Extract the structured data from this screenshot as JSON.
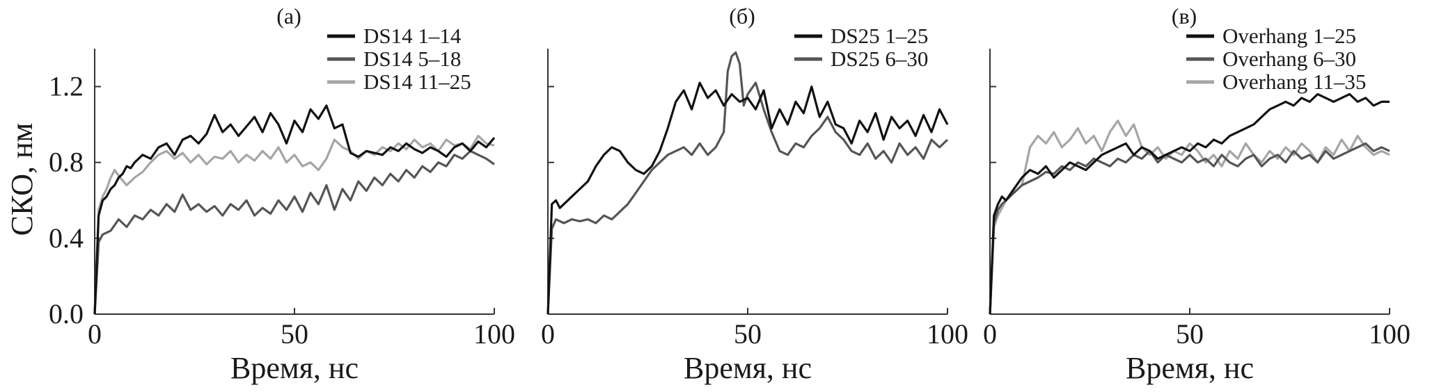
{
  "figure": {
    "ylabel": "СКО, нм",
    "xlabel": "Время, нс"
  },
  "chart_data": [
    {
      "type": "line",
      "panel_label": "(а)",
      "xlabel": "Время, нс",
      "ylabel": "СКО, нм",
      "xlim": [
        0,
        100
      ],
      "ylim": [
        0,
        1.4
      ],
      "xticks": [
        0,
        50,
        100
      ],
      "yticks": [
        0.0,
        0.4,
        0.8,
        1.2
      ],
      "xtick_labels": [
        "0",
        "50",
        "100"
      ],
      "ytick_labels": [
        "0.0",
        "0.4",
        "0.8",
        "1.2"
      ],
      "grid": false,
      "legend_position": "top-right",
      "series": [
        {
          "name": "DS14 1–14",
          "color": "#111111",
          "x": [
            0,
            1,
            2,
            3,
            4,
            5,
            6,
            7,
            8,
            9,
            10,
            12,
            14,
            16,
            18,
            20,
            22,
            24,
            26,
            28,
            30,
            32,
            34,
            36,
            38,
            40,
            42,
            44,
            46,
            48,
            50,
            52,
            54,
            56,
            58,
            60,
            62,
            64,
            66,
            68,
            70,
            72,
            74,
            76,
            78,
            80,
            82,
            84,
            86,
            88,
            90,
            92,
            94,
            96,
            98,
            100
          ],
          "y": [
            0.0,
            0.52,
            0.6,
            0.62,
            0.66,
            0.68,
            0.72,
            0.74,
            0.78,
            0.77,
            0.8,
            0.84,
            0.82,
            0.88,
            0.9,
            0.84,
            0.92,
            0.94,
            0.9,
            0.95,
            1.05,
            0.96,
            1.0,
            0.94,
            0.99,
            1.04,
            0.96,
            1.06,
            1.0,
            0.9,
            1.02,
            0.96,
            1.08,
            1.03,
            1.1,
            0.98,
            1.0,
            0.85,
            0.83,
            0.86,
            0.85,
            0.84,
            0.88,
            0.86,
            0.9,
            0.87,
            0.85,
            0.88,
            0.86,
            0.83,
            0.88,
            0.9,
            0.86,
            0.91,
            0.88,
            0.93
          ]
        },
        {
          "name": "DS14 5–18",
          "color": "#555555",
          "x": [
            0,
            1,
            2,
            4,
            6,
            8,
            10,
            12,
            14,
            16,
            18,
            20,
            22,
            24,
            26,
            28,
            30,
            32,
            34,
            36,
            38,
            40,
            42,
            44,
            46,
            48,
            50,
            52,
            54,
            56,
            58,
            60,
            62,
            64,
            66,
            68,
            70,
            72,
            74,
            76,
            78,
            80,
            82,
            84,
            86,
            88,
            90,
            92,
            94,
            96,
            98,
            100
          ],
          "y": [
            0.0,
            0.38,
            0.42,
            0.44,
            0.5,
            0.46,
            0.52,
            0.5,
            0.55,
            0.52,
            0.58,
            0.54,
            0.63,
            0.55,
            0.58,
            0.54,
            0.57,
            0.52,
            0.58,
            0.55,
            0.6,
            0.52,
            0.56,
            0.53,
            0.6,
            0.55,
            0.62,
            0.54,
            0.64,
            0.58,
            0.68,
            0.55,
            0.66,
            0.6,
            0.7,
            0.65,
            0.72,
            0.68,
            0.74,
            0.7,
            0.76,
            0.72,
            0.78,
            0.75,
            0.8,
            0.78,
            0.84,
            0.82,
            0.86,
            0.84,
            0.82,
            0.79
          ]
        },
        {
          "name": "DS14 11–25",
          "color": "#a5a5a5",
          "x": [
            0,
            1,
            2,
            3,
            4,
            5,
            6,
            8,
            10,
            12,
            14,
            16,
            18,
            20,
            22,
            24,
            26,
            28,
            30,
            32,
            34,
            36,
            38,
            40,
            42,
            44,
            46,
            48,
            50,
            52,
            54,
            56,
            58,
            60,
            62,
            64,
            66,
            68,
            70,
            72,
            74,
            76,
            78,
            80,
            82,
            84,
            86,
            88,
            90,
            92,
            94,
            96,
            98,
            100
          ],
          "y": [
            0.0,
            0.55,
            0.62,
            0.66,
            0.72,
            0.76,
            0.73,
            0.68,
            0.72,
            0.75,
            0.8,
            0.84,
            0.86,
            0.82,
            0.85,
            0.8,
            0.84,
            0.79,
            0.83,
            0.82,
            0.86,
            0.8,
            0.84,
            0.81,
            0.86,
            0.82,
            0.88,
            0.8,
            0.84,
            0.78,
            0.8,
            0.76,
            0.82,
            0.92,
            0.88,
            0.86,
            0.82,
            0.86,
            0.84,
            0.88,
            0.86,
            0.9,
            0.87,
            0.92,
            0.88,
            0.9,
            0.86,
            0.92,
            0.89,
            0.9,
            0.87,
            0.94,
            0.9,
            0.89
          ]
        }
      ]
    },
    {
      "type": "line",
      "panel_label": "(б)",
      "xlabel": "Время, нс",
      "ylabel": "",
      "xlim": [
        0,
        100
      ],
      "ylim": [
        0,
        1.4
      ],
      "xticks": [
        0,
        50,
        100
      ],
      "yticks": [
        0.0,
        0.4,
        0.8,
        1.2
      ],
      "xtick_labels": [
        "0",
        "50",
        "100"
      ],
      "ytick_labels": [],
      "grid": false,
      "legend_position": "top-right",
      "series": [
        {
          "name": "DS25 1–25",
          "color": "#111111",
          "x": [
            0,
            1,
            2,
            3,
            4,
            6,
            8,
            10,
            12,
            14,
            16,
            18,
            20,
            22,
            24,
            26,
            28,
            30,
            32,
            34,
            36,
            38,
            40,
            42,
            44,
            46,
            48,
            50,
            52,
            54,
            56,
            58,
            60,
            62,
            64,
            66,
            68,
            70,
            72,
            74,
            76,
            78,
            80,
            82,
            84,
            86,
            88,
            90,
            92,
            94,
            96,
            98,
            100
          ],
          "y": [
            0.0,
            0.58,
            0.6,
            0.56,
            0.58,
            0.62,
            0.66,
            0.7,
            0.78,
            0.84,
            0.88,
            0.86,
            0.8,
            0.76,
            0.74,
            0.78,
            0.86,
            0.98,
            1.12,
            1.18,
            1.08,
            1.22,
            1.14,
            1.18,
            1.1,
            1.16,
            1.12,
            1.14,
            1.08,
            1.18,
            0.98,
            1.08,
            1.0,
            1.12,
            1.06,
            1.2,
            1.04,
            1.12,
            1.0,
            0.98,
            0.9,
            1.02,
            0.96,
            1.06,
            0.92,
            1.04,
            0.98,
            1.02,
            0.94,
            1.05,
            0.96,
            1.08,
            1.0
          ]
        },
        {
          "name": "DS25 6–30",
          "color": "#555555",
          "x": [
            0,
            1,
            2,
            4,
            6,
            8,
            10,
            12,
            14,
            16,
            18,
            20,
            22,
            24,
            26,
            28,
            30,
            32,
            34,
            36,
            38,
            40,
            42,
            44,
            45,
            46,
            47,
            48,
            49,
            50,
            52,
            54,
            56,
            58,
            60,
            62,
            64,
            66,
            68,
            70,
            72,
            74,
            76,
            78,
            80,
            82,
            84,
            86,
            88,
            90,
            92,
            94,
            96,
            98,
            100
          ],
          "y": [
            0.0,
            0.45,
            0.5,
            0.48,
            0.5,
            0.49,
            0.5,
            0.48,
            0.52,
            0.5,
            0.54,
            0.58,
            0.64,
            0.7,
            0.76,
            0.8,
            0.84,
            0.86,
            0.88,
            0.84,
            0.9,
            0.84,
            0.88,
            0.96,
            1.28,
            1.36,
            1.38,
            1.32,
            1.1,
            1.16,
            1.22,
            1.08,
            0.96,
            0.86,
            0.84,
            0.9,
            0.88,
            0.94,
            0.98,
            1.04,
            0.96,
            0.92,
            0.86,
            0.84,
            0.9,
            0.82,
            0.86,
            0.8,
            0.9,
            0.84,
            0.88,
            0.82,
            0.92,
            0.88,
            0.92
          ]
        }
      ]
    },
    {
      "type": "line",
      "panel_label": "(в)",
      "xlabel": "Время, нс",
      "ylabel": "",
      "xlim": [
        0,
        100
      ],
      "ylim": [
        0,
        1.4
      ],
      "xticks": [
        0,
        50,
        100
      ],
      "yticks": [
        0.0,
        0.4,
        0.8,
        1.2
      ],
      "xtick_labels": [
        "0",
        "50",
        "100"
      ],
      "ytick_labels": [],
      "grid": false,
      "legend_position": "top-right",
      "series": [
        {
          "name": "Overhang 1–25",
          "color": "#111111",
          "x": [
            0,
            1,
            2,
            3,
            4,
            6,
            8,
            10,
            12,
            14,
            16,
            18,
            20,
            22,
            24,
            26,
            28,
            30,
            32,
            34,
            36,
            38,
            40,
            42,
            44,
            46,
            48,
            50,
            52,
            54,
            56,
            58,
            60,
            62,
            64,
            66,
            68,
            70,
            72,
            74,
            76,
            78,
            80,
            82,
            84,
            86,
            88,
            90,
            92,
            94,
            96,
            98,
            100
          ],
          "y": [
            0.0,
            0.52,
            0.58,
            0.62,
            0.6,
            0.66,
            0.72,
            0.76,
            0.74,
            0.78,
            0.72,
            0.76,
            0.8,
            0.78,
            0.76,
            0.8,
            0.84,
            0.86,
            0.88,
            0.9,
            0.84,
            0.88,
            0.86,
            0.82,
            0.84,
            0.86,
            0.88,
            0.86,
            0.9,
            0.88,
            0.92,
            0.9,
            0.94,
            0.96,
            0.98,
            1.0,
            1.04,
            1.08,
            1.1,
            1.12,
            1.1,
            1.14,
            1.12,
            1.16,
            1.14,
            1.12,
            1.14,
            1.16,
            1.12,
            1.14,
            1.1,
            1.12,
            1.12
          ]
        },
        {
          "name": "Overhang 6–30",
          "color": "#555555",
          "x": [
            0,
            1,
            2,
            3,
            4,
            6,
            8,
            10,
            12,
            14,
            16,
            18,
            20,
            22,
            24,
            26,
            28,
            30,
            32,
            34,
            36,
            38,
            40,
            42,
            44,
            46,
            48,
            50,
            52,
            54,
            56,
            58,
            60,
            62,
            64,
            66,
            68,
            70,
            72,
            74,
            76,
            78,
            80,
            82,
            84,
            86,
            88,
            90,
            92,
            94,
            96,
            98,
            100
          ],
          "y": [
            0.0,
            0.48,
            0.55,
            0.58,
            0.6,
            0.64,
            0.68,
            0.7,
            0.72,
            0.75,
            0.74,
            0.78,
            0.76,
            0.8,
            0.78,
            0.82,
            0.8,
            0.78,
            0.82,
            0.8,
            0.84,
            0.82,
            0.86,
            0.8,
            0.84,
            0.82,
            0.8,
            0.84,
            0.8,
            0.82,
            0.78,
            0.84,
            0.8,
            0.78,
            0.82,
            0.84,
            0.78,
            0.82,
            0.84,
            0.8,
            0.86,
            0.82,
            0.84,
            0.8,
            0.86,
            0.82,
            0.84,
            0.86,
            0.88,
            0.9,
            0.86,
            0.88,
            0.86
          ]
        },
        {
          "name": "Overhang 11–35",
          "color": "#a5a5a5",
          "x": [
            0,
            1,
            2,
            3,
            4,
            6,
            8,
            10,
            12,
            14,
            16,
            18,
            20,
            22,
            24,
            26,
            28,
            30,
            32,
            34,
            36,
            38,
            40,
            42,
            44,
            46,
            48,
            50,
            52,
            54,
            56,
            58,
            60,
            62,
            64,
            66,
            68,
            70,
            72,
            74,
            76,
            78,
            80,
            82,
            84,
            86,
            88,
            90,
            92,
            94,
            96,
            98,
            100
          ],
          "y": [
            0.0,
            0.46,
            0.52,
            0.56,
            0.6,
            0.64,
            0.68,
            0.88,
            0.94,
            0.9,
            0.96,
            0.88,
            0.92,
            0.98,
            0.9,
            0.94,
            0.86,
            0.96,
            1.02,
            0.94,
            1.0,
            0.88,
            0.84,
            0.88,
            0.82,
            0.86,
            0.84,
            0.9,
            0.86,
            0.8,
            0.84,
            0.78,
            0.86,
            0.82,
            0.9,
            0.84,
            0.8,
            0.86,
            0.82,
            0.88,
            0.84,
            0.9,
            0.86,
            0.8,
            0.88,
            0.84,
            0.92,
            0.86,
            0.94,
            0.88,
            0.84,
            0.86,
            0.84
          ]
        }
      ]
    }
  ]
}
